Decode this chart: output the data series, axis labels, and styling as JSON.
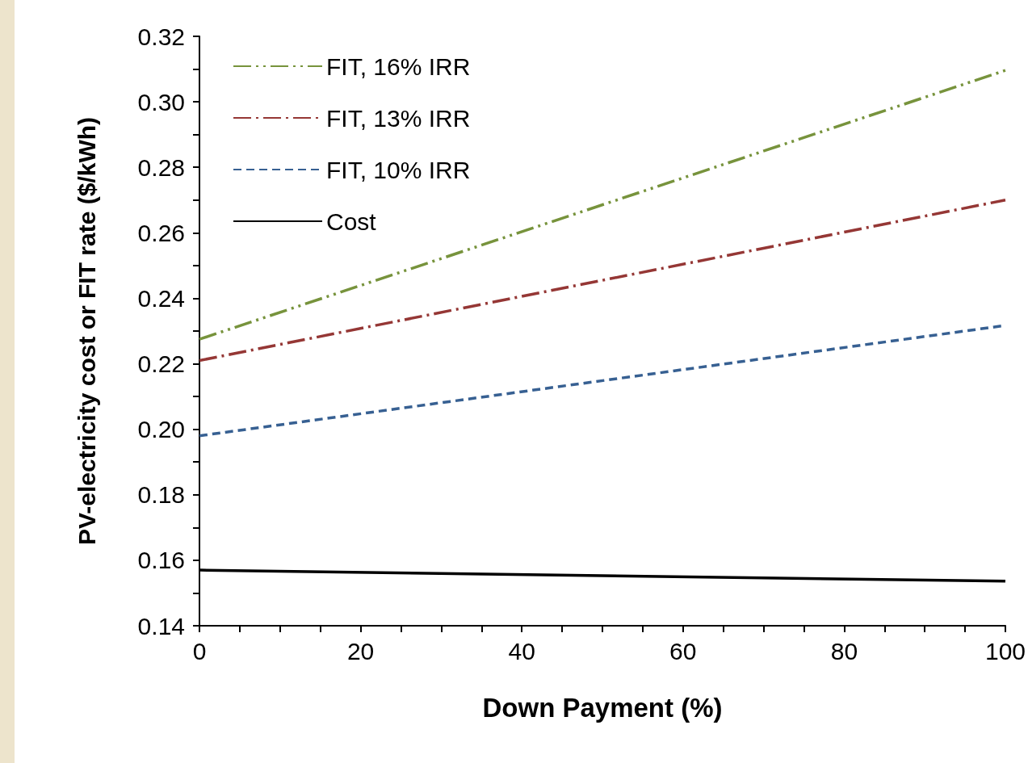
{
  "chart_data": {
    "type": "line",
    "xlabel": "Down Payment (%)",
    "ylabel": "PV-electricity cost or FIT rate ($/kWh)",
    "x": [
      0,
      100
    ],
    "series": [
      {
        "name": "FIT, 16% IRR",
        "color": "#77933c",
        "values": [
          0.2275,
          0.3096
        ],
        "line_style": "dashdotdot"
      },
      {
        "name": "FIT, 13% IRR",
        "color": "#953735",
        "values": [
          0.221,
          0.27
        ],
        "line_style": "dashdot"
      },
      {
        "name": "FIT, 10% IRR",
        "color": "#376092",
        "values": [
          0.198,
          0.2317
        ],
        "line_style": "dashed"
      },
      {
        "name": "Cost",
        "color": "#000000",
        "values": [
          0.157,
          0.1536
        ],
        "line_style": "solid"
      }
    ],
    "xlim": [
      0,
      100
    ],
    "xticks": [
      0,
      20,
      40,
      60,
      80,
      100
    ],
    "ylim": [
      0.14,
      0.32
    ],
    "yticks": [
      0.14,
      0.16,
      0.18,
      {
        "value": 0.2,
        "label": "0.20"
      },
      0.22,
      0.24,
      0.26,
      0.28,
      {
        "value": 0.3,
        "label": "0.30"
      },
      0.32
    ],
    "grid": false,
    "legend": "top left",
    "marker": "none"
  }
}
